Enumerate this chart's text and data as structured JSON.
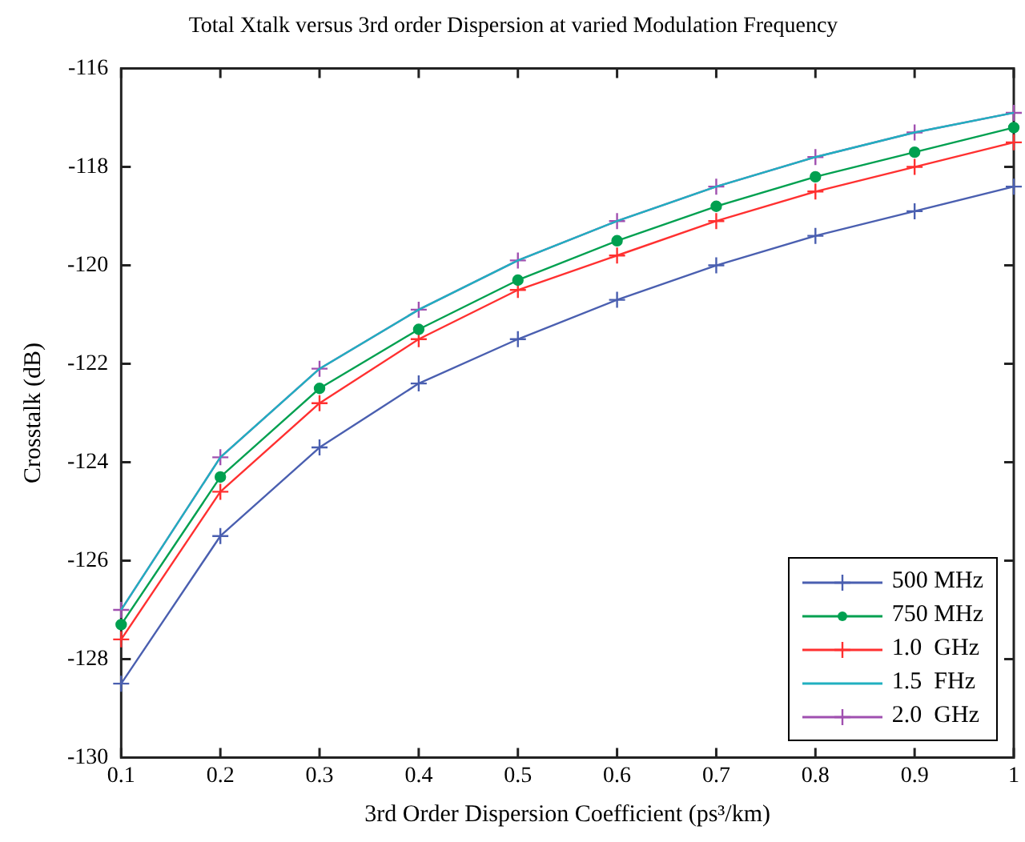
{
  "chart_data": {
    "type": "line",
    "title": "Total Xtalk versus 3rd order Dispersion at varied Modulation Frequency",
    "xlabel": "3rd Order Dispersion Coefficient (ps³/km)",
    "ylabel": "Crosstalk (dB)",
    "x": [
      0.1,
      0.2,
      0.3,
      0.4,
      0.5,
      0.6,
      0.7,
      0.8,
      0.9,
      1
    ],
    "xlim": [
      0.1,
      1
    ],
    "xticks": [
      0.1,
      0.2,
      0.3,
      0.4,
      0.5,
      0.6,
      0.7,
      0.8,
      0.9,
      1
    ],
    "ylim": [
      -130,
      -116
    ],
    "yticks": [
      -130,
      -128,
      -126,
      -124,
      -122,
      -120,
      -118,
      -116
    ],
    "grid": false,
    "legend": "bottom right",
    "series": [
      {
        "name": "500 MHz",
        "color": "#4a5fb0",
        "marker": "cross",
        "values": [
          -128.5,
          -125.5,
          -123.7,
          -122.4,
          -121.5,
          -120.7,
          -120.0,
          -119.4,
          -118.9,
          -118.4
        ]
      },
      {
        "name": "750 MHz",
        "color": "#00a050",
        "marker": "circle",
        "values": [
          -127.3,
          -124.3,
          -122.5,
          -121.3,
          -120.3,
          -119.5,
          -118.8,
          -118.2,
          -117.7,
          -117.2
        ]
      },
      {
        "name": "1.0  GHz",
        "color": "#ff3030",
        "marker": "cross",
        "values": [
          -127.6,
          -124.6,
          -122.8,
          -121.5,
          -120.5,
          -119.8,
          -119.1,
          -118.5,
          -118.0,
          -117.5
        ]
      },
      {
        "name": "1.5  FHz",
        "color": "#20b0c0",
        "marker": "none",
        "values": [
          -127.0,
          -123.9,
          -122.1,
          -120.9,
          -119.9,
          -119.1,
          -118.4,
          -117.8,
          -117.3,
          -116.9
        ]
      },
      {
        "name": "2.0  GHz",
        "color": "#a050b0",
        "marker": "cross",
        "values": [
          -127.0,
          -123.9,
          -122.1,
          -120.9,
          -119.9,
          -119.1,
          -118.4,
          -117.8,
          -117.3,
          -116.9
        ]
      }
    ]
  }
}
